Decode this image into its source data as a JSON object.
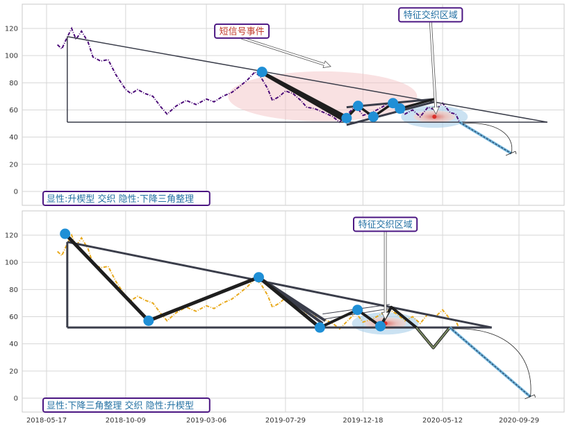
{
  "chart_data": [
    {
      "type": "line",
      "title": "",
      "xlabel": "",
      "ylabel": "",
      "ylim": [
        -10,
        135
      ],
      "yticks": [
        0,
        20,
        40,
        60,
        80,
        100,
        120
      ],
      "xticks": [
        "2018-05-17",
        "2018-10-09",
        "2019-03-06",
        "2019-07-29",
        "2019-12-18",
        "2020-05-12",
        "2020-09-29"
      ],
      "grid": true,
      "series_color": "#4b0a78",
      "price_series": [
        {
          "x": "2018-06-06",
          "y": 108
        },
        {
          "x": "2018-06-14",
          "y": 105
        },
        {
          "x": "2018-06-22",
          "y": 112
        },
        {
          "x": "2018-07-02",
          "y": 120
        },
        {
          "x": "2018-07-10",
          "y": 112
        },
        {
          "x": "2018-07-20",
          "y": 118
        },
        {
          "x": "2018-08-01",
          "y": 110
        },
        {
          "x": "2018-08-10",
          "y": 99
        },
        {
          "x": "2018-08-24",
          "y": 96
        },
        {
          "x": "2018-09-07",
          "y": 97
        },
        {
          "x": "2018-09-21",
          "y": 86
        },
        {
          "x": "2018-10-09",
          "y": 75
        },
        {
          "x": "2018-10-19",
          "y": 72
        },
        {
          "x": "2018-10-31",
          "y": 75
        },
        {
          "x": "2018-11-14",
          "y": 72
        },
        {
          "x": "2018-11-28",
          "y": 70
        },
        {
          "x": "2018-12-13",
          "y": 62
        },
        {
          "x": "2018-12-24",
          "y": 57
        },
        {
          "x": "2019-01-10",
          "y": 63
        },
        {
          "x": "2019-01-28",
          "y": 67
        },
        {
          "x": "2019-02-15",
          "y": 64
        },
        {
          "x": "2019-03-06",
          "y": 68
        },
        {
          "x": "2019-03-20",
          "y": 66
        },
        {
          "x": "2019-04-05",
          "y": 70
        },
        {
          "x": "2019-04-22",
          "y": 73
        },
        {
          "x": "2019-05-08",
          "y": 78
        },
        {
          "x": "2019-05-20",
          "y": 82
        },
        {
          "x": "2019-06-03",
          "y": 88
        },
        {
          "x": "2019-06-14",
          "y": 84
        },
        {
          "x": "2019-06-26",
          "y": 76
        },
        {
          "x": "2019-07-05",
          "y": 67
        },
        {
          "x": "2019-07-18",
          "y": 70
        },
        {
          "x": "2019-07-29",
          "y": 74
        },
        {
          "x": "2019-08-12",
          "y": 72
        },
        {
          "x": "2019-08-26",
          "y": 67
        },
        {
          "x": "2019-09-06",
          "y": 62
        },
        {
          "x": "2019-09-20",
          "y": 61
        },
        {
          "x": "2019-10-08",
          "y": 58
        },
        {
          "x": "2019-10-24",
          "y": 55
        },
        {
          "x": "2019-11-05",
          "y": 51
        },
        {
          "x": "2019-11-20",
          "y": 57
        },
        {
          "x": "2019-12-05",
          "y": 63
        },
        {
          "x": "2019-12-18",
          "y": 56
        },
        {
          "x": "2020-01-03",
          "y": 58
        },
        {
          "x": "2020-01-17",
          "y": 61
        },
        {
          "x": "2020-02-04",
          "y": 65
        },
        {
          "x": "2020-02-18",
          "y": 62
        },
        {
          "x": "2020-03-04",
          "y": 57
        },
        {
          "x": "2020-03-18",
          "y": 60
        },
        {
          "x": "2020-04-01",
          "y": 55
        },
        {
          "x": "2020-04-15",
          "y": 62
        },
        {
          "x": "2020-04-29",
          "y": 60
        },
        {
          "x": "2020-05-12",
          "y": 65
        },
        {
          "x": "2020-05-26",
          "y": 58
        },
        {
          "x": "2020-06-05",
          "y": 57
        },
        {
          "x": "2020-06-12",
          "y": 51
        }
      ],
      "triangle_upper": [
        {
          "x": "2018-06-24",
          "y": 114
        },
        {
          "x": "2020-11-20",
          "y": 51
        }
      ],
      "triangle_lower": [
        {
          "x": "2018-06-24",
          "y": 51
        },
        {
          "x": "2020-11-20",
          "y": 51
        }
      ],
      "triangle_left": [
        {
          "x": "2018-06-24",
          "y": 114
        },
        {
          "x": "2018-06-24",
          "y": 51
        }
      ],
      "wedge_upper": [
        {
          "x": "2019-11-18",
          "y": 62
        },
        {
          "x": "2020-04-27",
          "y": 68
        }
      ],
      "wedge_lower": [
        {
          "x": "2019-11-18",
          "y": 49
        },
        {
          "x": "2020-04-27",
          "y": 66
        }
      ],
      "zigzag": [
        {
          "x": "2019-06-16",
          "y": 88
        },
        {
          "x": "2019-11-18",
          "y": 54
        },
        {
          "x": "2019-12-09",
          "y": 63
        },
        {
          "x": "2020-01-06",
          "y": 55
        },
        {
          "x": "2020-02-11",
          "y": 65
        },
        {
          "x": "2020-02-24",
          "y": 61
        },
        {
          "x": "2020-04-27",
          "y": 68
        }
      ],
      "markers": [
        {
          "x": "2019-06-16",
          "y": 88
        },
        {
          "x": "2019-11-18",
          "y": 54
        },
        {
          "x": "2019-12-09",
          "y": 63
        },
        {
          "x": "2020-01-06",
          "y": 55
        },
        {
          "x": "2020-02-11",
          "y": 65
        },
        {
          "x": "2020-02-24",
          "y": 61
        }
      ],
      "projection": [
        {
          "x": "2020-06-12",
          "y": 51
        },
        {
          "x": "2020-09-15",
          "y": 28
        }
      ],
      "projection_arc": [
        {
          "x": "2020-06-18",
          "y": 50
        },
        {
          "x": "2020-09-15",
          "y": 28
        }
      ],
      "signal_zone": {
        "x": "2020-04-27",
        "y": 55,
        "rx_days": 95,
        "ry": 22
      },
      "cross_zone": {
        "x": "2020-05-12",
        "y": 55,
        "rx_days": 35,
        "ry": 9
      },
      "callouts": [
        {
          "text": "短信号事件",
          "text_color": "#c0392b",
          "at": {
            "x": "2019-05-10",
            "y": 118
          },
          "tip": {
            "x": "2019-10-20",
            "y": 92
          }
        },
        {
          "text": "特征交织区域",
          "text_color": "#2471a3",
          "at": {
            "x": "2020-04-20",
            "y": 130
          },
          "tip": {
            "x": "2020-04-30",
            "y": 57
          }
        }
      ],
      "label": "显性:升楔型 交织 隐性:下降三角整理"
    },
    {
      "type": "line",
      "title": "",
      "xlabel": "",
      "ylabel": "",
      "ylim": [
        -10,
        140
      ],
      "yticks": [
        0,
        20,
        40,
        60,
        80,
        100,
        120
      ],
      "xticks": [
        "2018-05-17",
        "2018-10-09",
        "2019-03-06",
        "2019-07-29",
        "2019-12-18",
        "2020-05-12",
        "2020-09-29"
      ],
      "grid": true,
      "series_color": "#e8a91c",
      "price_series": [
        {
          "x": "2018-06-06",
          "y": 108
        },
        {
          "x": "2018-06-14",
          "y": 105
        },
        {
          "x": "2018-06-22",
          "y": 112
        },
        {
          "x": "2018-07-02",
          "y": 120
        },
        {
          "x": "2018-07-10",
          "y": 112
        },
        {
          "x": "2018-07-20",
          "y": 118
        },
        {
          "x": "2018-08-01",
          "y": 110
        },
        {
          "x": "2018-08-10",
          "y": 99
        },
        {
          "x": "2018-08-24",
          "y": 96
        },
        {
          "x": "2018-09-07",
          "y": 97
        },
        {
          "x": "2018-09-21",
          "y": 86
        },
        {
          "x": "2018-10-09",
          "y": 75
        },
        {
          "x": "2018-10-19",
          "y": 72
        },
        {
          "x": "2018-10-31",
          "y": 75
        },
        {
          "x": "2018-11-14",
          "y": 72
        },
        {
          "x": "2018-11-28",
          "y": 70
        },
        {
          "x": "2018-12-13",
          "y": 62
        },
        {
          "x": "2018-12-24",
          "y": 57
        },
        {
          "x": "2019-01-10",
          "y": 63
        },
        {
          "x": "2019-01-28",
          "y": 67
        },
        {
          "x": "2019-02-15",
          "y": 64
        },
        {
          "x": "2019-03-06",
          "y": 68
        },
        {
          "x": "2019-03-20",
          "y": 66
        },
        {
          "x": "2019-04-05",
          "y": 70
        },
        {
          "x": "2019-04-22",
          "y": 73
        },
        {
          "x": "2019-05-08",
          "y": 78
        },
        {
          "x": "2019-05-20",
          "y": 82
        },
        {
          "x": "2019-06-03",
          "y": 88
        },
        {
          "x": "2019-06-14",
          "y": 84
        },
        {
          "x": "2019-06-26",
          "y": 76
        },
        {
          "x": "2019-07-05",
          "y": 67
        },
        {
          "x": "2019-07-18",
          "y": 70
        },
        {
          "x": "2019-07-29",
          "y": 74
        },
        {
          "x": "2019-08-12",
          "y": 72
        },
        {
          "x": "2019-08-26",
          "y": 67
        },
        {
          "x": "2019-09-06",
          "y": 62
        },
        {
          "x": "2019-09-20",
          "y": 61
        },
        {
          "x": "2019-10-08",
          "y": 58
        },
        {
          "x": "2019-10-24",
          "y": 55
        },
        {
          "x": "2019-11-05",
          "y": 51
        },
        {
          "x": "2019-11-20",
          "y": 57
        },
        {
          "x": "2019-12-05",
          "y": 63
        },
        {
          "x": "2019-12-18",
          "y": 56
        },
        {
          "x": "2020-01-03",
          "y": 58
        },
        {
          "x": "2020-01-17",
          "y": 61
        },
        {
          "x": "2020-02-04",
          "y": 65
        },
        {
          "x": "2020-02-18",
          "y": 62
        },
        {
          "x": "2020-03-04",
          "y": 57
        },
        {
          "x": "2020-03-18",
          "y": 60
        },
        {
          "x": "2020-04-01",
          "y": 55
        },
        {
          "x": "2020-04-15",
          "y": 62
        },
        {
          "x": "2020-04-29",
          "y": 60
        },
        {
          "x": "2020-05-12",
          "y": 65
        },
        {
          "x": "2020-05-26",
          "y": 58
        },
        {
          "x": "2020-06-05",
          "y": 57
        },
        {
          "x": "2020-06-12",
          "y": 51
        }
      ],
      "triangle_upper": [
        {
          "x": "2018-06-24",
          "y": 115
        },
        {
          "x": "2020-08-10",
          "y": 52
        }
      ],
      "triangle_lower": [
        {
          "x": "2018-06-24",
          "y": 52
        },
        {
          "x": "2020-08-10",
          "y": 52
        }
      ],
      "triangle_left": [
        {
          "x": "2018-06-24",
          "y": 115
        },
        {
          "x": "2018-06-24",
          "y": 52
        }
      ],
      "zigzag": [
        {
          "x": "2018-06-20",
          "y": 121
        },
        {
          "x": "2018-11-20",
          "y": 57
        },
        {
          "x": "2019-06-10",
          "y": 89
        },
        {
          "x": "2019-09-30",
          "y": 52
        }
      ],
      "fan_lines": [
        {
          "from": {
            "x": "2019-06-10",
            "y": 89
          },
          "to": {
            "x": "2019-09-30",
            "y": 52
          }
        },
        {
          "from": {
            "x": "2019-06-10",
            "y": 89
          },
          "to": {
            "x": "2019-10-05",
            "y": 55
          }
        },
        {
          "from": {
            "x": "2019-06-10",
            "y": 89
          },
          "to": {
            "x": "2019-10-10",
            "y": 57
          }
        }
      ],
      "wedge_lines": [
        {
          "from": {
            "x": "2019-10-05",
            "y": 62
          },
          "to": {
            "x": "2020-02-05",
            "y": 69
          }
        },
        {
          "from": {
            "x": "2019-10-05",
            "y": 58
          },
          "to": {
            "x": "2020-02-05",
            "y": 66
          }
        }
      ],
      "zigzag2": [
        {
          "x": "2019-09-30",
          "y": 52
        },
        {
          "x": "2019-12-08",
          "y": 65
        },
        {
          "x": "2020-01-19",
          "y": 53
        },
        {
          "x": "2020-02-08",
          "y": 67
        },
        {
          "x": "2020-03-25",
          "y": 52
        },
        {
          "x": "2020-04-25",
          "y": 37
        },
        {
          "x": "2020-05-25",
          "y": 52
        }
      ],
      "markers": [
        {
          "x": "2018-06-20",
          "y": 121
        },
        {
          "x": "2018-11-20",
          "y": 57
        },
        {
          "x": "2019-06-10",
          "y": 89
        },
        {
          "x": "2019-09-30",
          "y": 52
        },
        {
          "x": "2019-12-08",
          "y": 65
        },
        {
          "x": "2020-01-19",
          "y": 53
        }
      ],
      "projection": [
        {
          "x": "2020-05-25",
          "y": 52
        },
        {
          "x": "2020-10-20",
          "y": 1
        }
      ],
      "projection_arc": [
        {
          "x": "2020-05-28",
          "y": 51
        },
        {
          "x": "2020-10-20",
          "y": 1
        }
      ],
      "signal_zone": {
        "x": "2020-01-28",
        "y": 55,
        "rx_days": 60,
        "ry": 14
      },
      "cross_zone": {
        "x": "2020-01-28",
        "y": 55,
        "rx_days": 20,
        "ry": 6
      },
      "callouts": [
        {
          "text": "特征交织区域",
          "text_color": "#2471a3",
          "at": {
            "x": "2020-01-28",
            "y": 128
          },
          "tip": {
            "x": "2020-01-28",
            "y": 58
          }
        }
      ],
      "label": "显性:下降三角整理 交织 隐性:升楔型"
    }
  ]
}
